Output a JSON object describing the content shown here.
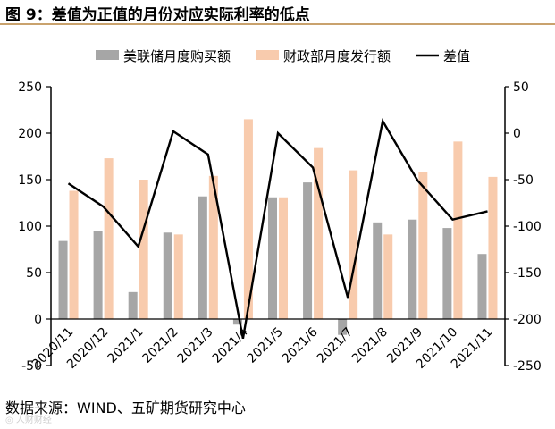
{
  "figure": {
    "title": "图 9：差值为正值的月份对应实际利率的低点",
    "source": "数据来源：WIND、五矿期货研究中心",
    "watermark": "◎ 人财财经"
  },
  "chart_data": {
    "type": "bar+line",
    "categories": [
      "2020/11",
      "2020/12",
      "2021/1",
      "2021/2",
      "2021/3",
      "2021/4",
      "2021/5",
      "2021/6",
      "2021/7",
      "2021/8",
      "2021/9",
      "2021/10",
      "2021/11"
    ],
    "series": [
      {
        "name": "美联储月度购买额",
        "type": "bar",
        "axis": "left",
        "color": "#a6a6a6",
        "values": [
          84,
          95,
          29,
          93,
          132,
          -6,
          131,
          147,
          -17,
          104,
          107,
          98,
          70
        ]
      },
      {
        "name": "财政部月度发行额",
        "type": "bar",
        "axis": "left",
        "color": "#f8cbad",
        "values": [
          138,
          173,
          150,
          91,
          154,
          215,
          131,
          184,
          160,
          91,
          158,
          191,
          153
        ]
      },
      {
        "name": "差值",
        "type": "line",
        "axis": "right",
        "color": "#000000",
        "values": [
          -54,
          -79,
          -122,
          2,
          -23,
          -221,
          0,
          -37,
          -177,
          13,
          -51,
          -93,
          -84
        ]
      }
    ],
    "left_axis": {
      "min": -50,
      "max": 250,
      "ticks": [
        -50,
        0,
        50,
        100,
        150,
        200,
        250
      ]
    },
    "right_axis": {
      "min": -250,
      "max": 50,
      "ticks": [
        -250,
        -200,
        -150,
        -100,
        -50,
        0,
        50
      ]
    },
    "legend": "top",
    "grid": false
  }
}
